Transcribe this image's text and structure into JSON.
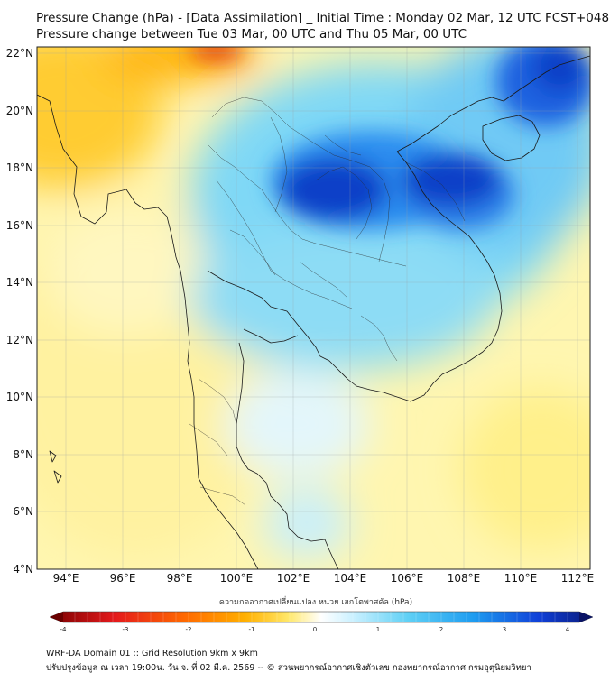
{
  "header": {
    "title_line1": "Pressure Change (hPa) - [Data Assimilation] _ Initial Time : Monday 02 Mar, 12 UTC FCST+048",
    "title_line2": "Pressure change between Tue 03 Mar, 00 UTC and Thu 05 Mar, 00 UTC"
  },
  "map": {
    "extent": {
      "lon_min": 93,
      "lon_max": 112.5,
      "lat_min": 4,
      "lat_max": 22.2
    },
    "lat_ticks": [
      "22°N",
      "20°N",
      "18°N",
      "16°N",
      "14°N",
      "12°N",
      "10°N",
      "8°N",
      "6°N",
      "4°N"
    ],
    "lon_ticks": [
      "94°E",
      "96°E",
      "98°E",
      "100°E",
      "102°E",
      "104°E",
      "106°E",
      "108°E",
      "110°E",
      "112°E"
    ],
    "grid": true
  },
  "colorbar": {
    "title": "ความกดอากาศเปลี่ยนแปลง หน่วย เฮกโตพาสคัล (hPa)",
    "ticks": [
      "-4",
      "-3",
      "-2",
      "-1",
      "0",
      "1",
      "2",
      "3",
      "4"
    ],
    "range": [
      -4,
      4
    ],
    "colors": {
      "neg_strong": "#7a0000",
      "neg_red": "#e41a1c",
      "neg_orange": "#ff8c00",
      "neg_yellow": "#ffe34a",
      "neutral": "#ffffff",
      "pos_cyan": "#4fc3f7",
      "pos_blue": "#1e88e5",
      "pos_navy": "#0a1e8c"
    }
  },
  "footer": {
    "line1": "WRF-DA Domain 01 :: Grid Resolution 9km x 9km",
    "line2": "ปรับปรุงข้อมูล ณ เวลา 19:00น. วัน จ. ที่ 02 มี.ค. 2569 -- © ส่วนพยากรณ์อากาศเชิงตัวเลข กองพยากรณ์อากาศ กรมอุตุนิยมวิทยา"
  }
}
